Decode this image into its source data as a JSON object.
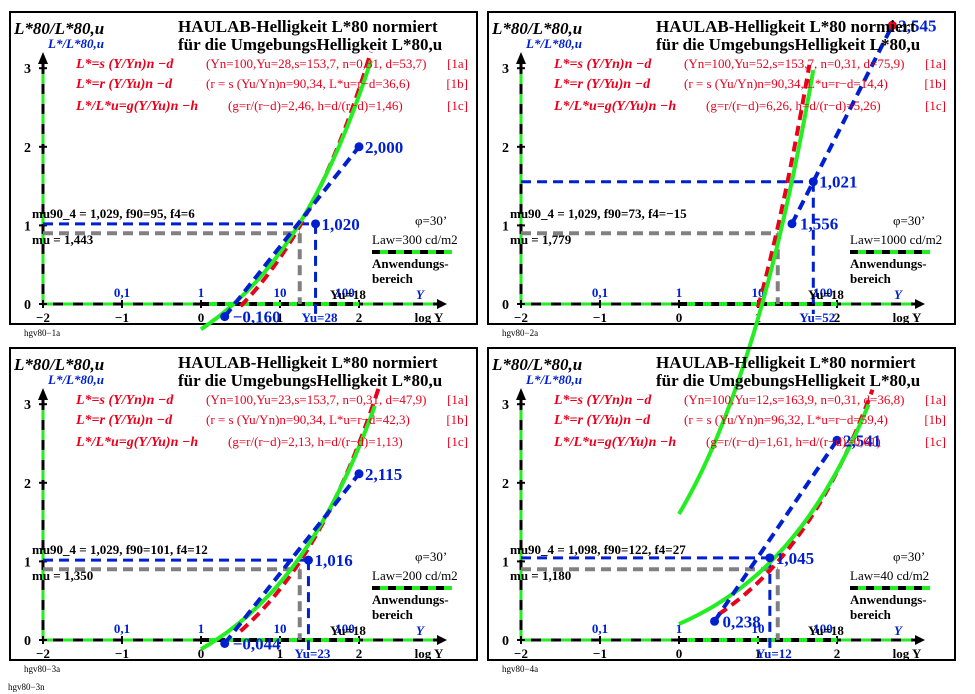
{
  "page_label": "hgv80−3n",
  "colors": {
    "red": "#e8001c",
    "blue": "#0020d0",
    "green": "#22ee22",
    "gray": "#808080",
    "axis": "#000000"
  },
  "chart_data": [
    {
      "type": "line",
      "panel_label": "hgv80−1a",
      "title_line1": "HAULAB-Helligkeit L*80 normiert",
      "title_line2": "für die UmgebungsHelligkeit L*80,u",
      "ylabel_main": "L*80/L*80,u",
      "ylabel_sub": "L*/L*80,u",
      "formula_a": "L*=s (Y/Yn)n −d",
      "formula_b": "L*=r (Y/Yu)n −d",
      "formula_c": "L*/L*u=g(Y/Yu)n −h",
      "params_a": "(Yn=100,Yu=28,s=153,7, n=0,31, d=53,7)",
      "params_b": "(r = s (Yu/Yn)n=90,34, L*u=r−d=36,6)",
      "params_c": "(g=r/(r−d)=2,46, h=d/(r−d)=1,46)",
      "tag_a": "[1a]",
      "tag_b": "[1b]",
      "tag_c": "[1c]",
      "m_text": "mu90_4 = 1,029, f90=95, f4=6",
      "mu_text": "mu = 1,443",
      "phi_text": "φ=30’",
      "law_text": "Law=300 cd/m2",
      "legend_label": "Anwendungs-bereich",
      "xlabel": "log Y",
      "y_ticks": [
        "0",
        "1",
        "2",
        "3"
      ],
      "x_ticks": [
        "−2",
        "−1",
        "0",
        "1",
        "2"
      ],
      "y_tick_values": [
        "0,1",
        "1",
        "10",
        "100"
      ],
      "ysym": "Y",
      "yu_value_label": "Yu=28",
      "y18_label": "Yu=18",
      "label_top": "2,000",
      "label_mid": "1,020",
      "label_low": "−0,160",
      "red_curve": {
        "s": 153.7,
        "n": 0.31,
        "d": 53.7,
        "Yu": 28,
        "Lu": 36.6
      },
      "green_curve": {
        "g": 2.46,
        "h": 1.46,
        "n": 0.31
      },
      "blue_line": {
        "slope": 1.39,
        "intercept": 0.07,
        "m90_4": 1.029
      },
      "points": [
        {
          "x": 2.0,
          "y": 2.0
        },
        {
          "x": 1.45,
          "y": 1.02
        },
        {
          "x": 0.3,
          "y": -0.16
        }
      ],
      "xlim": [
        -2,
        2.9
      ],
      "ylim": [
        0,
        3.2
      ]
    },
    {
      "type": "line",
      "panel_label": "hgv80−2a",
      "title_line1": "HAULAB-Helligkeit L*80 normiert",
      "title_line2": "für die UmgebungsHelligkeit L*80,u",
      "ylabel_main": "L*80/L*80,u",
      "ylabel_sub": "L*/L*80,u",
      "formula_a": "L*=s (Y/Yn)n −d",
      "formula_b": "L*=r (Y/Yu)n −d",
      "formula_c": "L*/L*u=g(Y/Yu)n −h",
      "params_a": "(Yn=100,Yu=52,s=153,7, n=0,31, d=75,9)",
      "params_b": "(r = s (Yu/Yn)n=90,34, L*u=r−d=14,4)",
      "params_c": "(g=r/(r−d)=6,26, h=d/(r−d)=5,26)",
      "tag_a": "[1a]",
      "tag_b": "[1b]",
      "tag_c": "[1c]",
      "m_text": "mu90_4 = 1,029, f90=73, f4=−15",
      "mu_text": "mu = 1,779",
      "phi_text": "φ=30’",
      "law_text": "Law=1000 cd/m2",
      "legend_label": "Anwendungs-bereich",
      "xlabel": "log Y",
      "y_ticks": [
        "0",
        "1",
        "2",
        "3"
      ],
      "x_ticks": [
        "−2",
        "−1",
        "0",
        "1",
        "2"
      ],
      "y_tick_values": [
        "0,1",
        "1",
        "10",
        "100"
      ],
      "ysym": "Y",
      "yu_value_label": "Yu=52",
      "y18_label": "Yu=18",
      "label_top": "3,545",
      "label_mid": "1,021",
      "label_low": "1,556",
      "red_curve": {
        "s": 153.7,
        "n": 0.31,
        "d": 75.9,
        "Yu": 52,
        "Lu": 14.4
      },
      "green_curve": {
        "g": 6.26,
        "h": 5.26,
        "n": 0.31
      },
      "blue_line": {
        "slope": 2.0,
        "intercept": -1.83,
        "m90_4": 1.029
      },
      "points": [
        {
          "x": 2.7,
          "y": 3.545
        },
        {
          "x": 1.7,
          "y": 1.556
        },
        {
          "x": 1.43,
          "y": 1.021
        }
      ],
      "xlim": [
        -2,
        2.9
      ],
      "ylim": [
        0,
        3.2
      ]
    },
    {
      "type": "line",
      "panel_label": "hgv80−3a",
      "title_line1": "HAULAB-Helligkeit L*80 normiert",
      "title_line2": "für die UmgebungsHelligkeit L*80,u",
      "ylabel_main": "L*80/L*80,u",
      "ylabel_sub": "L*/L*80,u",
      "formula_a": "L*=s (Y/Yn)n −d",
      "formula_b": "L*=r (Y/Yu)n −d",
      "formula_c": "L*/L*u=g(Y/Yu)n −h",
      "params_a": "(Yn=100,Yu=23,s=153,7, n=0,31, d=47,9)",
      "params_b": "(r = s (Yu/Yn)n=90,34, L*u=r−d=42,3)",
      "params_c": "(g=r/(r−d)=2,13, h=d/(r−d)=1,13)",
      "tag_a": "[1a]",
      "tag_b": "[1b]",
      "tag_c": "[1c]",
      "m_text": "mu90_4 = 1,029, f90=101, f4=12",
      "mu_text": "mu = 1,350",
      "phi_text": "φ=30’",
      "law_text": "Law=200 cd/m2",
      "legend_label": "Anwendungs-bereich",
      "xlabel": "log Y",
      "y_ticks": [
        "0",
        "1",
        "2",
        "3"
      ],
      "x_ticks": [
        "−2",
        "−1",
        "0",
        "1",
        "2"
      ],
      "y_tick_values": [
        "0,1",
        "1",
        "10",
        "100"
      ],
      "ysym": "Y",
      "yu_value_label": "Yu=23",
      "y18_label": "Yu=18",
      "label_top": "2,115",
      "label_mid": "1,016",
      "label_low": "−0,044",
      "red_curve": {
        "s": 153.7,
        "n": 0.31,
        "d": 47.9,
        "Yu": 23,
        "Lu": 42.3
      },
      "green_curve": {
        "g": 2.13,
        "h": 1.13,
        "n": 0.31
      },
      "blue_line": {
        "slope": 1.25,
        "intercept": -0.33,
        "m90_4": 1.029
      },
      "points": [
        {
          "x": 2.0,
          "y": 2.115
        },
        {
          "x": 1.36,
          "y": 1.016
        },
        {
          "x": 0.3,
          "y": -0.044
        }
      ],
      "xlim": [
        -2,
        2.9
      ],
      "ylim": [
        0,
        3.2
      ]
    },
    {
      "type": "line",
      "panel_label": "hgv80−4a",
      "title_line1": "HAULAB-Helligkeit L*80 normiert",
      "title_line2": "für die UmgebungsHelligkeit L*80,u",
      "ylabel_main": "L*80/L*80,u",
      "ylabel_sub": "L*/L*80,u",
      "formula_a": "L*=s (Y/Yn)n −d",
      "formula_b": "L*=r (Y/Yu)n −d",
      "formula_c": "L*/L*u=g(Y/Yu)n −h",
      "params_a": "(Yn=100,Yu=12,s=163,9, n=0,31, d=36,8)",
      "params_b": "(r = s (Yu/Yn)n=96,32, L*u=r−d=59,4)",
      "params_c": "(g=r/(r−d)=1,61, h=d/(r−d)=0,61)",
      "tag_a": "[1a]",
      "tag_b": "[1b]",
      "tag_c": "[1c]",
      "m_text": "mu90_4 = 1,098, f90=122, f4=27",
      "mu_text": "mu = 1,180",
      "phi_text": "φ=30’",
      "law_text": "Law=40 cd/m2",
      "legend_label": "Anwendungs-bereich",
      "xlabel": "log Y",
      "y_ticks": [
        "0",
        "1",
        "2",
        "3"
      ],
      "x_ticks": [
        "−2",
        "−1",
        "0",
        "1",
        "2"
      ],
      "y_tick_values": [
        "0,1",
        "1",
        "10",
        "100"
      ],
      "ysym": "Y",
      "yu_value_label": "Yu=12",
      "y18_label": "Yu=18",
      "label_top": "2,541",
      "label_mid": "1,045",
      "label_low": "0,238",
      "red_curve": {
        "s": 163.9,
        "n": 0.31,
        "d": 36.8,
        "Yu": 12,
        "Lu": 59.4
      },
      "green_curve": {
        "g": 1.61,
        "h": 0.61,
        "n": 0.31
      },
      "blue_line": {
        "slope": 1.13,
        "intercept": -0.25,
        "m90_4": 1.098
      },
      "points": [
        {
          "x": 2.0,
          "y": 2.541
        },
        {
          "x": 1.15,
          "y": 1.045
        },
        {
          "x": 0.45,
          "y": 0.238
        }
      ],
      "xlim": [
        -2,
        2.9
      ],
      "ylim": [
        0,
        3.2
      ]
    }
  ]
}
